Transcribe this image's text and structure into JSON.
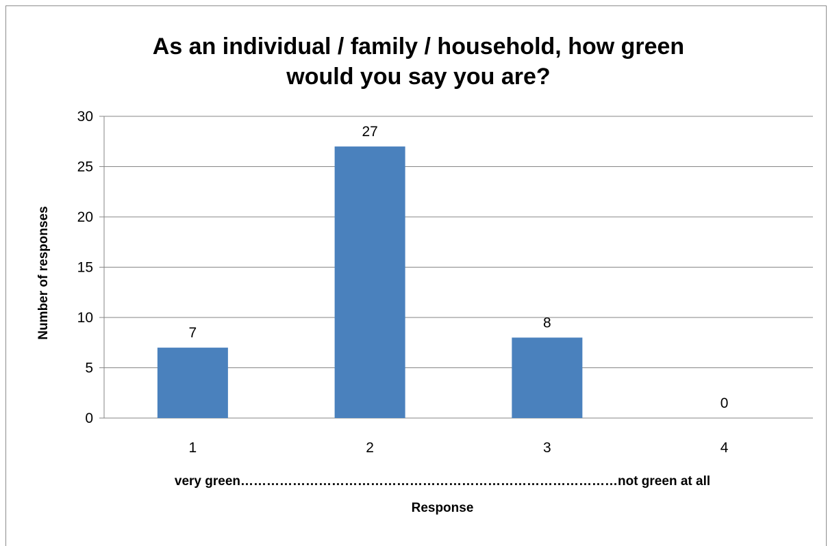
{
  "chart_data": {
    "type": "bar",
    "title_lines": [
      "As an individual / family / household, how green",
      "would you say you are?"
    ],
    "categories": [
      "1",
      "2",
      "3",
      "4"
    ],
    "values": [
      7,
      27,
      8,
      0
    ],
    "data_labels": [
      "7",
      "27",
      "8",
      "0"
    ],
    "xlabel_lines": [
      "very green……………………………………………………………………………not  green at all",
      "Response"
    ],
    "ylabel": "Number of responses",
    "ylim": [
      0,
      30
    ],
    "yticks": [
      0,
      5,
      10,
      15,
      20,
      25,
      30
    ],
    "grid": true,
    "legend": "none",
    "bar_color": "#4a81bd",
    "grid_color": "#868686"
  }
}
